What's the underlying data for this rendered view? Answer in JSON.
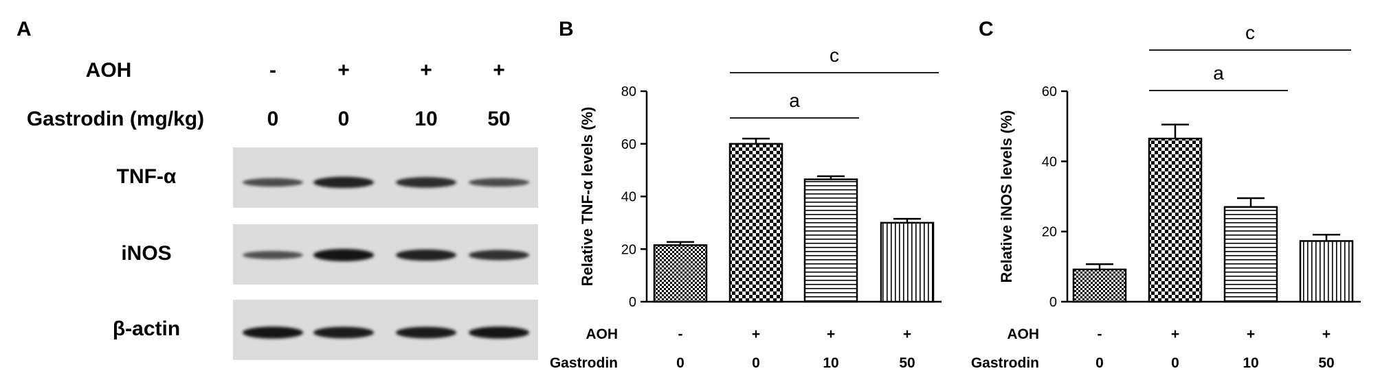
{
  "panel_a": {
    "letter": "A",
    "row_labels": {
      "aoh": "AOH",
      "gastrodin": "Gastrodin (mg/kg)"
    },
    "lanes": [
      {
        "aoh": "-",
        "dose": "0"
      },
      {
        "aoh": "+",
        "dose": "0"
      },
      {
        "aoh": "+",
        "dose": "10"
      },
      {
        "aoh": "+",
        "dose": "50"
      }
    ],
    "blots": [
      {
        "label": "TNF-α",
        "band_intensity": [
          0.45,
          0.85,
          0.75,
          0.45
        ]
      },
      {
        "label": "iNOS",
        "band_intensity": [
          0.4,
          1.0,
          0.85,
          0.7
        ]
      },
      {
        "label": "β-actin",
        "band_intensity": [
          0.95,
          0.9,
          0.9,
          0.95
        ]
      }
    ]
  },
  "chart_data": [
    {
      "type": "bar",
      "panel": "B",
      "categories": [
        "0",
        "0",
        "10",
        "50"
      ],
      "values": [
        21.5,
        60,
        46.5,
        30
      ],
      "errors": [
        1.2,
        2,
        1.2,
        1.5
      ],
      "patterns": [
        "fine-check",
        "coarse-check",
        "horizontal-lines",
        "vertical-lines"
      ],
      "ylabel": "Relative TNF-α levels (%)",
      "ylim": [
        0,
        80
      ],
      "yticks": [
        0,
        20,
        40,
        60,
        80
      ],
      "condition_rows": [
        {
          "label": "AOH",
          "values": [
            "-",
            "+",
            "+",
            "+"
          ]
        },
        {
          "label": "Gastrodin",
          "values": [
            "0",
            "0",
            "10",
            "50"
          ]
        }
      ],
      "significance": [
        {
          "label": "c",
          "from": 1,
          "to": 3
        },
        {
          "label": "a",
          "from": 1,
          "to": 2
        }
      ]
    },
    {
      "type": "bar",
      "panel": "C",
      "categories": [
        "0",
        "0",
        "10",
        "50"
      ],
      "values": [
        9.2,
        46.5,
        27,
        17.3
      ],
      "errors": [
        1.5,
        4,
        2.5,
        1.8
      ],
      "patterns": [
        "fine-check",
        "coarse-check",
        "horizontal-lines",
        "vertical-lines"
      ],
      "ylabel": "Relative iNOS levels (%)",
      "ylim": [
        0,
        60
      ],
      "yticks": [
        0,
        20,
        40,
        60
      ],
      "condition_rows": [
        {
          "label": "AOH",
          "values": [
            "-",
            "+",
            "+",
            "+"
          ]
        },
        {
          "label": "Gastrodin",
          "values": [
            "0",
            "0",
            "10",
            "50"
          ]
        }
      ],
      "significance": [
        {
          "label": "c",
          "from": 1,
          "to": 3
        },
        {
          "label": "a",
          "from": 1,
          "to": 2
        }
      ]
    }
  ]
}
